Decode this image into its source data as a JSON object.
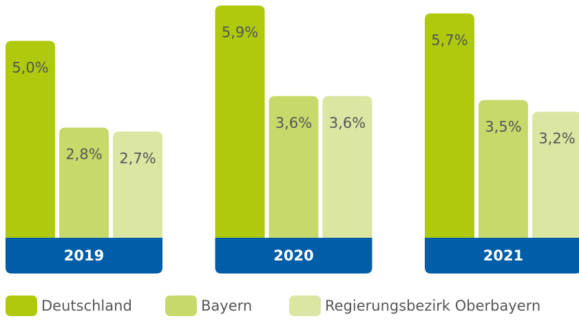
{
  "chart_data": {
    "type": "bar",
    "categories": [
      "2019",
      "2020",
      "2021"
    ],
    "series": [
      {
        "name": "Deutschland",
        "color": "#afc90d",
        "values": [
          5.0,
          5.9,
          5.7
        ],
        "value_labels": [
          "5,0%",
          "5,9%",
          "5,7%"
        ]
      },
      {
        "name": "Bayern",
        "color": "#c8d96b",
        "values": [
          2.8,
          3.6,
          3.5
        ],
        "value_labels": [
          "2,8%",
          "3,6%",
          "3,5%"
        ]
      },
      {
        "name": "Regierungsbezirk Oberbayern",
        "color": "#dbe6a2",
        "values": [
          2.7,
          3.6,
          3.2
        ],
        "value_labels": [
          "2,7%",
          "3,6%",
          "3,2%"
        ]
      }
    ],
    "band_color": "#005ea8"
  }
}
